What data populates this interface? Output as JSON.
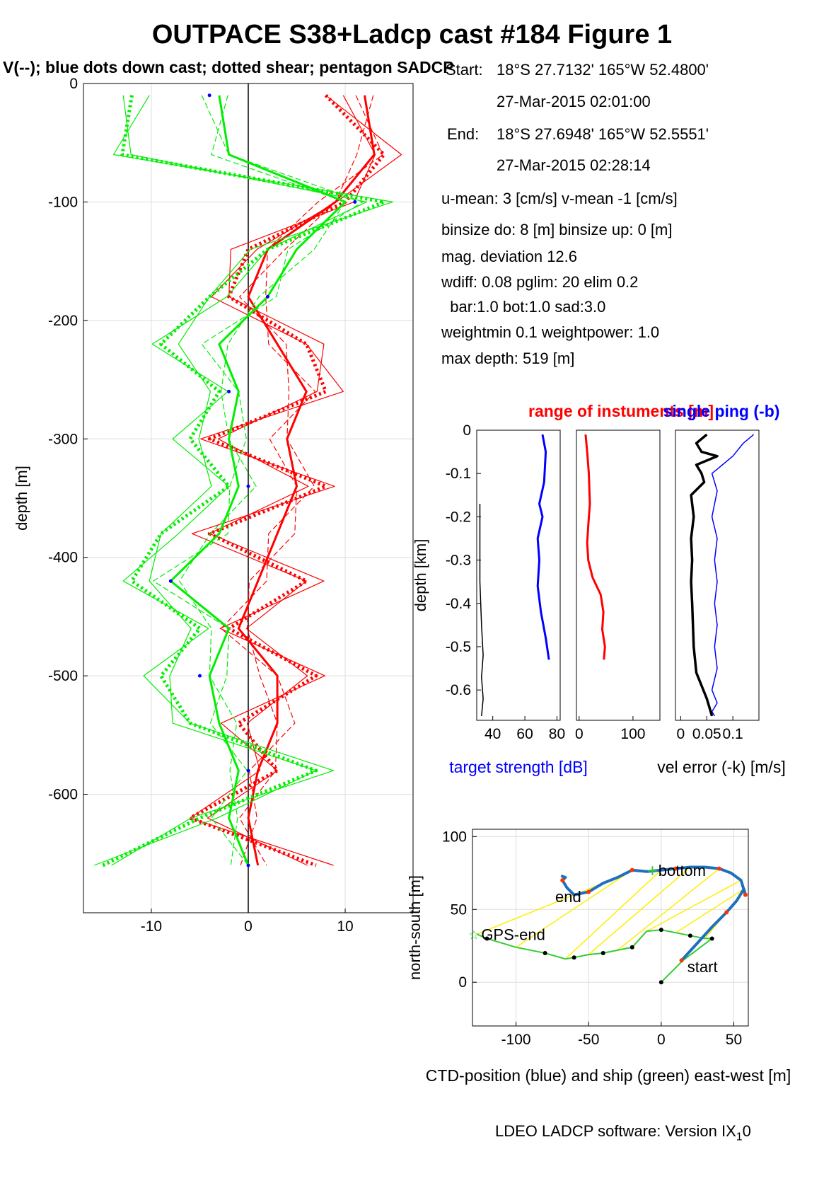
{
  "title": "OUTPACE S38+Ladcp cast #184  Figure 1",
  "subtitle": "V(--); blue dots down cast; dotted shear; pentagon SADCP",
  "info": {
    "start_label": "Start:",
    "start_pos": "18°S 27.7132'     165°W 52.4800'",
    "start_time": "27-Mar-2015 02:01:00",
    "end_label": "End:",
    "end_pos": "18°S 27.6948'     165°W 52.5551'",
    "end_time": "27-Mar-2015 02:28:14",
    "means": "u-mean:   3 [cm/s]    v-mean  -1 [cm/s]",
    "binsize": "binsize do: 8 [m]  binsize up:  0 [m]",
    "magdev": "mag. deviation 12.6",
    "wdiff": "wdiff: 0.08  pglim: 20  elim 0.2",
    "bar": "  bar:1.0 bot:1.0 sad:3.0",
    "weight": "weightmin 0.1  weightpower: 1.0",
    "maxdepth": "max depth: 519 [m]"
  },
  "footer": "LDEO LADCP software: Version IX",
  "footer_sub": "1",
  "footer_tail": "0",
  "colors": {
    "u": "#ff0000",
    "v": "#00ee00",
    "dots": "#0000ff",
    "ctd": "#1f6fbf",
    "ship": "#33cc33",
    "link": "#ffee00"
  },
  "chart_data": [
    {
      "type": "line",
      "ylabel": "depth [m]",
      "xlim": [
        -17,
        17
      ],
      "ylim": [
        -700,
        0
      ],
      "xticks": [
        -10,
        0,
        10
      ],
      "yticks": [
        0,
        -100,
        -200,
        -300,
        -400,
        -500,
        -600
      ],
      "grid": true,
      "series": [
        {
          "color": "red",
          "style": "solid",
          "y": [
            -10,
            -60,
            -100,
            -140,
            -180,
            -220,
            -260,
            -300,
            -340,
            -380,
            -420,
            -460,
            -500,
            -540,
            -580,
            -620,
            -660
          ],
          "x": [
            12,
            13,
            9,
            2,
            0,
            3,
            6,
            4,
            5,
            3,
            1,
            -1,
            3,
            3,
            1,
            0,
            1
          ]
        },
        {
          "color": "red",
          "style": "dotted",
          "y": [
            -10,
            -60,
            -100,
            -140,
            -180,
            -220,
            -260,
            -300,
            -340,
            -380,
            -420,
            -460,
            -500,
            -540,
            -580,
            -620,
            -660
          ],
          "x": [
            8,
            14,
            10,
            0,
            -2,
            6,
            8,
            -4,
            8,
            -4,
            6,
            -2,
            7,
            -1,
            3,
            -6,
            7
          ]
        },
        {
          "color": "green",
          "style": "solid",
          "y": [
            -10,
            -60,
            -100,
            -140,
            -180,
            -220,
            -260,
            -300,
            -340,
            -380,
            -420,
            -460,
            -500,
            -540,
            -580,
            -620,
            -660
          ],
          "x": [
            -3,
            -2,
            10,
            5,
            2,
            -3,
            -1,
            -2,
            -1,
            -3,
            -8,
            -2,
            -4,
            -3,
            -1,
            -2,
            0
          ]
        },
        {
          "color": "green",
          "style": "dotted",
          "y": [
            -10,
            -60,
            -100,
            -140,
            -180,
            -220,
            -260,
            -300,
            -340,
            -380,
            -420,
            -460,
            -500,
            -540,
            -580,
            -620,
            -660
          ],
          "x": [
            -12,
            -13,
            14,
            2,
            -4,
            -9,
            -3,
            -6,
            -2,
            -9,
            -12,
            -5,
            -9,
            -6,
            7,
            -5,
            -15
          ]
        }
      ]
    },
    {
      "type": "line",
      "title": "range of instuments [m]",
      "title2": "single ping (-b)",
      "ylabel": "depth [km]",
      "xlabel": "target strength [dB]",
      "xlim": [
        30,
        82
      ],
      "xticks": [
        40,
        60,
        80
      ],
      "ylim": [
        -0.67,
        0
      ],
      "yticks": [
        0,
        -0.1,
        -0.2,
        -0.3,
        -0.4,
        -0.5,
        -0.6
      ],
      "series": [
        {
          "color": "blue",
          "x": [
            71,
            73,
            72,
            69,
            71,
            68,
            69,
            68,
            70,
            73,
            75
          ],
          "y": [
            -0.01,
            -0.05,
            -0.12,
            -0.17,
            -0.2,
            -0.25,
            -0.3,
            -0.36,
            -0.42,
            -0.48,
            -0.53
          ]
        },
        {
          "color": "black",
          "x": [
            32,
            32,
            32,
            33,
            34,
            33,
            34,
            33
          ],
          "y": [
            -0.17,
            -0.25,
            -0.35,
            -0.45,
            -0.52,
            -0.57,
            -0.62,
            -0.66
          ]
        }
      ]
    },
    {
      "type": "line",
      "xlim": [
        -5,
        150
      ],
      "xticks": [
        0,
        100
      ],
      "ylim": [
        -0.67,
        0
      ],
      "series": [
        {
          "color": "red",
          "x": [
            12,
            15,
            18,
            20,
            17,
            15,
            17,
            25,
            40,
            45,
            43,
            48,
            46
          ],
          "y": [
            -0.01,
            -0.05,
            -0.1,
            -0.17,
            -0.22,
            -0.26,
            -0.3,
            -0.34,
            -0.38,
            -0.42,
            -0.46,
            -0.5,
            -0.53
          ]
        }
      ]
    },
    {
      "type": "line",
      "xlabel": "vel error (-k) [m/s]",
      "xlim": [
        -0.01,
        0.15
      ],
      "xticks": [
        0,
        0.05,
        0.1
      ],
      "xticklabels": [
        "0",
        "0.05",
        "0.1"
      ],
      "ylim": [
        -0.67,
        0
      ],
      "series": [
        {
          "color": "blue",
          "x": [
            0.14,
            0.12,
            0.1,
            0.06,
            0.07,
            0.06,
            0.07,
            0.065,
            0.07,
            0.065,
            0.07,
            0.065,
            0.07,
            0.06,
            0.07,
            0.06,
            0.065
          ],
          "y": [
            -0.01,
            -0.03,
            -0.06,
            -0.1,
            -0.14,
            -0.2,
            -0.25,
            -0.3,
            -0.35,
            -0.4,
            -0.45,
            -0.5,
            -0.55,
            -0.6,
            -0.63,
            -0.65,
            -0.66
          ]
        },
        {
          "color": "black",
          "x": [
            0.05,
            0.03,
            0.04,
            0.07,
            0.03,
            0.04,
            0.045,
            0.02,
            0.025,
            0.02,
            0.022,
            0.02,
            0.022,
            0.025,
            0.03,
            0.05,
            0.06
          ],
          "y": [
            -0.01,
            -0.03,
            -0.05,
            -0.06,
            -0.08,
            -0.1,
            -0.12,
            -0.15,
            -0.2,
            -0.25,
            -0.3,
            -0.35,
            -0.4,
            -0.5,
            -0.56,
            -0.62,
            -0.66
          ]
        }
      ]
    },
    {
      "type": "line",
      "ylabel": "north-south [m]",
      "xlabel": "CTD-position (blue) and ship (green) east-west [m]",
      "xlim": [
        -130,
        60
      ],
      "ylim": [
        -30,
        105
      ],
      "xticks": [
        -100,
        -50,
        0,
        50
      ],
      "yticks": [
        0,
        50,
        100
      ],
      "grid": true,
      "labels": [
        "bottom",
        "end",
        "GPS-end",
        "start"
      ],
      "series": [
        {
          "name": "CTD",
          "color": "blue",
          "x": [
            14,
            25,
            35,
            45,
            52,
            57,
            58,
            55,
            48,
            40,
            30,
            20,
            10,
            0,
            -10,
            -20,
            -30,
            -40,
            -50,
            -60,
            -65,
            -68,
            -66,
            -69
          ],
          "y": [
            15,
            27,
            38,
            48,
            56,
            64,
            60,
            70,
            75,
            78,
            79,
            79,
            78,
            77,
            76,
            77,
            72,
            68,
            62,
            60,
            65,
            70,
            72,
            73
          ]
        },
        {
          "name": "ship",
          "color": "green",
          "x": [
            0,
            15,
            35,
            30,
            20,
            10,
            0,
            -10,
            -20,
            -30,
            -40,
            -50,
            -60,
            -66,
            -80,
            -100,
            -120,
            -127
          ],
          "y": [
            0,
            15,
            30,
            30,
            32,
            34,
            36,
            35,
            24,
            22,
            20,
            19,
            17,
            16,
            20,
            24,
            30,
            33
          ]
        }
      ]
    }
  ]
}
